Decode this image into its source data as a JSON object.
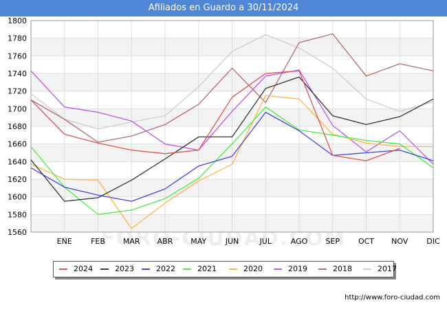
{
  "title": "Afiliados en Guardo a 30/11/2024",
  "source": "http://www.foro-ciudad.com",
  "watermark": "FORO-CIUDAD.COM",
  "chart_data": {
    "type": "line",
    "categories": [
      "",
      "ENE",
      "FEB",
      "MAR",
      "ABR",
      "MAY",
      "JUN",
      "JUL",
      "AGO",
      "SEP",
      "OCT",
      "NOV",
      "DIC"
    ],
    "ylim": [
      1560,
      1800
    ],
    "yticks": [
      1560,
      1580,
      1600,
      1620,
      1640,
      1660,
      1680,
      1700,
      1720,
      1740,
      1760,
      1780,
      1800
    ],
    "grid": true,
    "legend_position": "bottom",
    "series": [
      {
        "name": "2024",
        "color": "#e05050",
        "values": [
          1710,
          1671,
          1661,
          1653,
          1649,
          1653,
          1713,
          1740,
          1743,
          1647,
          1641,
          1655,
          null
        ]
      },
      {
        "name": "2023",
        "color": "#333333",
        "values": [
          1642,
          1595,
          1599,
          1619,
          1643,
          1668,
          1668,
          1723,
          1736,
          1692,
          1682,
          1691,
          1711
        ]
      },
      {
        "name": "2022",
        "color": "#4444dd",
        "values": [
          1633,
          1611,
          1602,
          1595,
          1609,
          1635,
          1646,
          1696,
          1675,
          1647,
          1650,
          1653,
          1641
        ]
      },
      {
        "name": "2021",
        "color": "#44ee44",
        "values": [
          1657,
          1611,
          1580,
          1585,
          1598,
          1621,
          1660,
          1702,
          1676,
          1670,
          1664,
          1660,
          1633
        ]
      },
      {
        "name": "2020",
        "color": "#ffb347",
        "values": [
          1637,
          1620,
          1619,
          1564,
          1593,
          1618,
          1637,
          1715,
          1711,
          1671,
          1661,
          1657,
          1657
        ]
      },
      {
        "name": "2019",
        "color": "#bb55ee",
        "values": [
          1743,
          1702,
          1696,
          1686,
          1660,
          1653,
          1697,
          1737,
          1744,
          1681,
          1651,
          1675,
          1637
        ]
      },
      {
        "name": "2018",
        "color": "#b86a6a",
        "values": [
          1710,
          1688,
          1662,
          1669,
          1682,
          1705,
          1746,
          1707,
          1775,
          1785,
          1737,
          1751,
          1743
        ]
      },
      {
        "name": "2017",
        "color": "#cccccc",
        "values": [
          1717,
          1688,
          1677,
          1685,
          1692,
          1725,
          1765,
          1784,
          1769,
          1746,
          1711,
          1697,
          1708
        ]
      }
    ]
  }
}
